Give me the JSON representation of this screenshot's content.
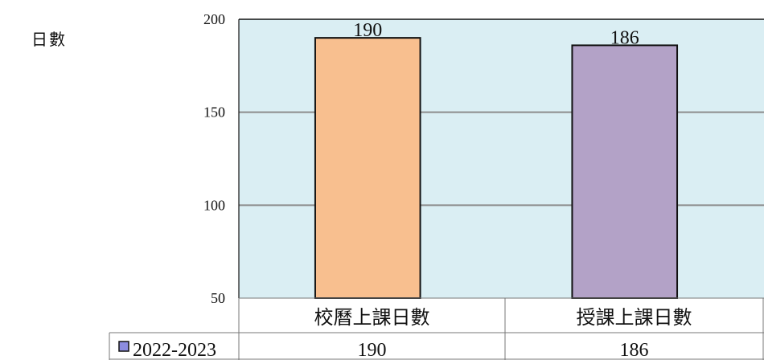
{
  "chart_data": {
    "type": "bar",
    "ylabel": "日數",
    "categories": [
      "校曆上課日數",
      "授課上課日數"
    ],
    "series": [
      {
        "name": "2022-2023",
        "values": [
          190,
          186
        ],
        "colors": [
          "#f8bf8f",
          "#b3a2c7"
        ]
      }
    ],
    "ylim": [
      50,
      200
    ],
    "yticks": [
      50,
      100,
      150,
      200
    ],
    "grid": true,
    "plot_background": "#daeef3",
    "legend_marker_color": "#8c8ce0",
    "data_table": true
  }
}
